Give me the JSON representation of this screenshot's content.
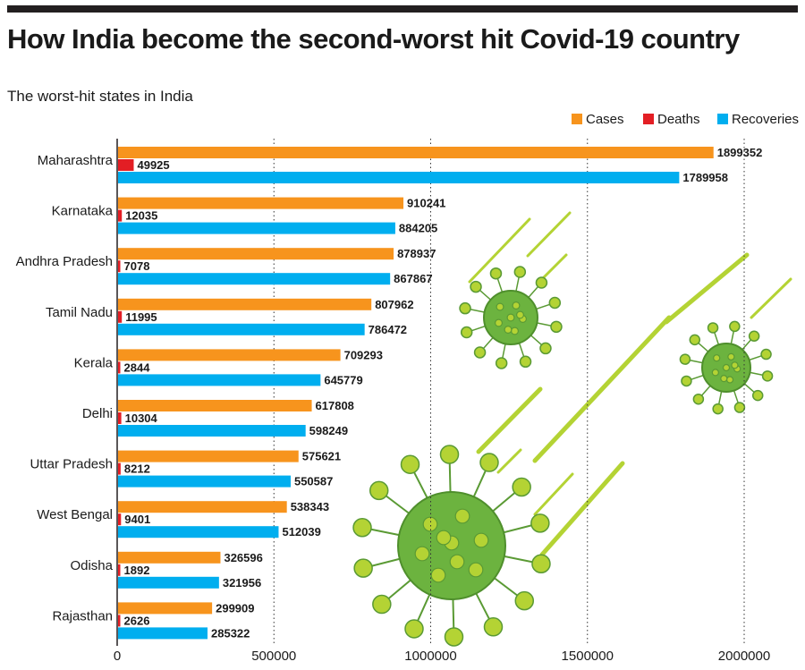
{
  "header": {
    "title": "How India become the second-worst hit Covid-19 country",
    "subtitle": "The worst-hit states in India"
  },
  "colors": {
    "cases": "#f7941d",
    "deaths": "#e31e24",
    "recoveries": "#00aeef",
    "virus_body": "#6cb33f",
    "virus_spike": "#b4d334"
  },
  "chart_data": {
    "type": "bar",
    "orientation": "horizontal",
    "title": "The worst-hit states in India",
    "categories": [
      "Maharashtra",
      "Karnataka",
      "Andhra Pradesh",
      "Tamil Nadu",
      "Kerala",
      "Delhi",
      "Uttar Pradesh",
      "West Bengal",
      "Odisha",
      "Rajasthan"
    ],
    "series": [
      {
        "name": "Cases",
        "color": "#f7941d",
        "values": [
          1899352,
          910241,
          878937,
          807962,
          709293,
          617808,
          575621,
          538343,
          326596,
          299909
        ]
      },
      {
        "name": "Deaths",
        "color": "#e31e24",
        "values": [
          49925,
          12035,
          7078,
          11995,
          2844,
          10304,
          8212,
          9401,
          1892,
          2626
        ]
      },
      {
        "name": "Recoveries",
        "color": "#00aeef",
        "values": [
          1789958,
          884205,
          867867,
          786472,
          645779,
          598249,
          550587,
          512039,
          321956,
          285322
        ]
      }
    ],
    "xlim": [
      0,
      2000000
    ],
    "xticks": [
      "0",
      "500000",
      "1000000",
      "1500000",
      "2000000"
    ],
    "xtick_values": [
      0,
      500000,
      1000000,
      1500000,
      2000000
    ],
    "legend": [
      "Cases",
      "Deaths",
      "Recoveries"
    ],
    "legend_position": "top-right",
    "grid": "vertical dotted"
  }
}
